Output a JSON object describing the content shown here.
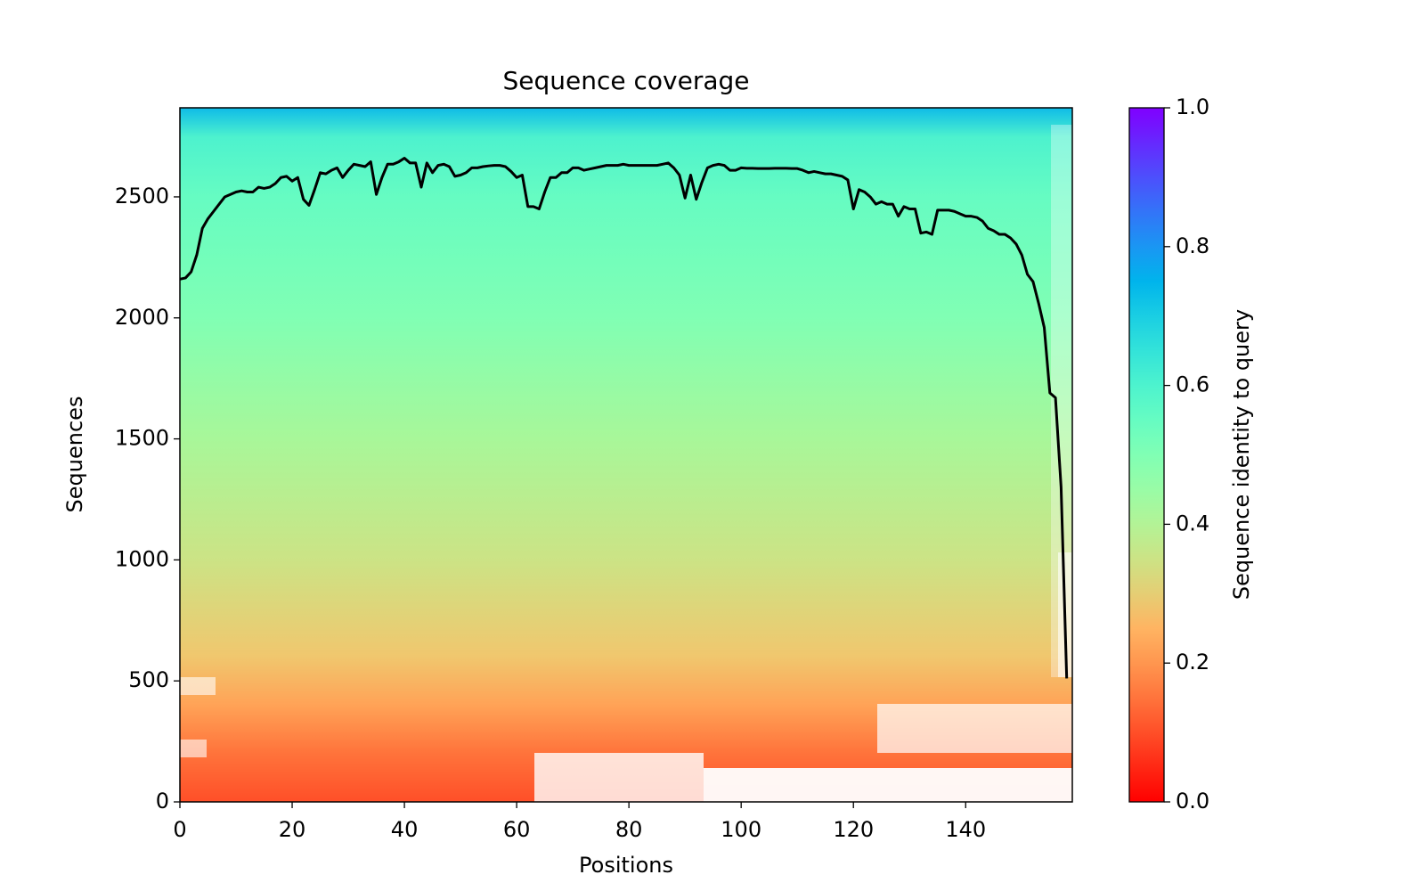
{
  "chart_data": {
    "type": "line",
    "title": "Sequence coverage",
    "x_label": "Positions",
    "y_label": "Sequences",
    "colorbar_label": "Sequence identity to query",
    "color": "#000000",
    "xlim": [
      0,
      159
    ],
    "ylim": [
      0,
      2868
    ],
    "xticks": [
      0,
      20,
      40,
      60,
      80,
      100,
      120,
      140
    ],
    "yticks": [
      0,
      500,
      1000,
      1500,
      2000,
      2500
    ],
    "clim": [
      0,
      1
    ],
    "cticks": [
      {
        "value": 0,
        "label": "0.0"
      },
      0.2,
      0.4,
      0.6,
      0.8,
      {
        "value": 1,
        "label": "1.0"
      }
    ],
    "colormap": "rainbow_r",
    "x": [
      0,
      1,
      2,
      3,
      4,
      5,
      6,
      7,
      8,
      9,
      10,
      11,
      12,
      13,
      14,
      15,
      16,
      17,
      18,
      19,
      20,
      21,
      22,
      23,
      24,
      25,
      26,
      27,
      28,
      29,
      30,
      31,
      32,
      33,
      34,
      35,
      36,
      37,
      38,
      39,
      40,
      41,
      42,
      43,
      44,
      45,
      46,
      47,
      48,
      49,
      50,
      51,
      52,
      53,
      54,
      55,
      56,
      57,
      58,
      59,
      60,
      61,
      62,
      63,
      64,
      65,
      66,
      67,
      68,
      69,
      70,
      71,
      72,
      73,
      74,
      75,
      76,
      77,
      78,
      79,
      80,
      81,
      82,
      83,
      84,
      85,
      86,
      87,
      88,
      89,
      90,
      91,
      92,
      93,
      94,
      95,
      96,
      97,
      98,
      99,
      100,
      101,
      102,
      103,
      104,
      105,
      106,
      107,
      108,
      109,
      110,
      111,
      112,
      113,
      114,
      115,
      116,
      117,
      118,
      119,
      120,
      121,
      122,
      123,
      124,
      125,
      126,
      127,
      128,
      129,
      130,
      131,
      132,
      133,
      134,
      135,
      136,
      137,
      138,
      139,
      140,
      141,
      142,
      143,
      144,
      145,
      146,
      147,
      148,
      149,
      150,
      151,
      152,
      153,
      154,
      155,
      156,
      157,
      158
    ],
    "values": [
      2160,
      2165,
      2190,
      2260,
      2370,
      2410,
      2440,
      2470,
      2500,
      2510,
      2520,
      2525,
      2520,
      2520,
      2540,
      2535,
      2540,
      2555,
      2580,
      2585,
      2565,
      2580,
      2490,
      2465,
      2530,
      2600,
      2595,
      2610,
      2620,
      2580,
      2610,
      2635,
      2630,
      2625,
      2645,
      2510,
      2580,
      2635,
      2635,
      2645,
      2660,
      2640,
      2640,
      2540,
      2640,
      2600,
      2630,
      2635,
      2625,
      2585,
      2590,
      2600,
      2620,
      2620,
      2625,
      2628,
      2630,
      2630,
      2625,
      2605,
      2580,
      2590,
      2460,
      2460,
      2450,
      2520,
      2580,
      2580,
      2600,
      2600,
      2620,
      2620,
      2610,
      2615,
      2620,
      2625,
      2630,
      2630,
      2630,
      2635,
      2630,
      2630,
      2630,
      2630,
      2630,
      2630,
      2635,
      2640,
      2620,
      2590,
      2495,
      2590,
      2490,
      2560,
      2620,
      2630,
      2635,
      2630,
      2610,
      2610,
      2620,
      2618,
      2618,
      2617,
      2617,
      2617,
      2618,
      2618,
      2618,
      2617,
      2617,
      2610,
      2600,
      2605,
      2600,
      2595,
      2595,
      2590,
      2585,
      2570,
      2450,
      2530,
      2520,
      2500,
      2470,
      2480,
      2470,
      2470,
      2420,
      2460,
      2450,
      2450,
      2350,
      2355,
      2345,
      2445,
      2445,
      2445,
      2440,
      2430,
      2420,
      2420,
      2415,
      2400,
      2370,
      2360,
      2345,
      2345,
      2330,
      2305,
      2260,
      2180,
      2150,
      2060,
      1960,
      1690,
      1670,
      1300,
      510
    ]
  }
}
